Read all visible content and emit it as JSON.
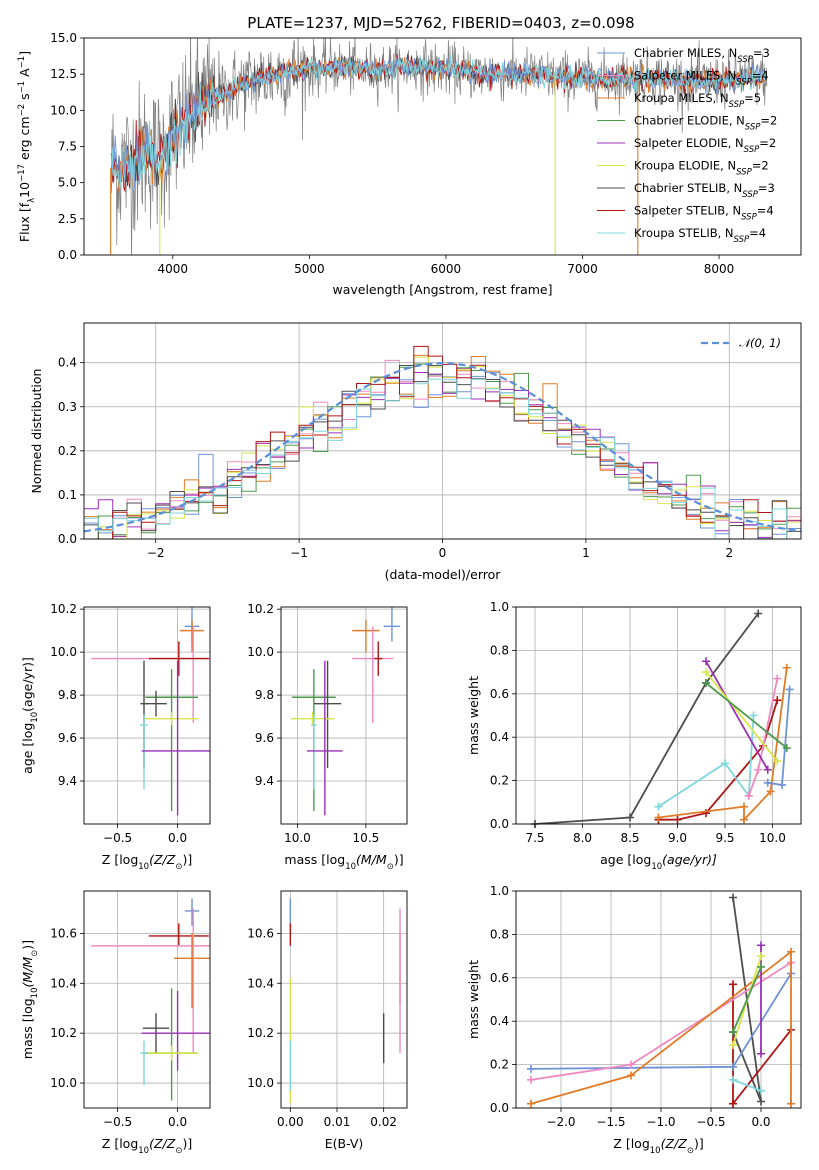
{
  "title": "PLATE=1237, MJD=52762, FIBERID=0403, z=0.098",
  "colors": {
    "chabrier_miles": "#6f93d8",
    "salpeter_miles": "#f08ac0",
    "kroupa_miles": "#e07b28",
    "chabrier_elodie": "#4e9a4e",
    "salpeter_elodie": "#9b30b8",
    "kroupa_elodie": "#d9e64a",
    "chabrier_stelib": "#4d4d4d",
    "salpeter_stelib": "#b01515",
    "kroupa_stelib": "#7fd6dc",
    "data_grey": "#808080",
    "normal_curve": "#5b8fd6",
    "grid": "#b0b0b0"
  },
  "chart_data": [
    {
      "id": "spectrum",
      "type": "line",
      "xlabel": "wavelength [Angstrom, rest frame]",
      "ylabel": "Flux [f",
      "ylabel_sub": "λ",
      "ylabel_mid": "10",
      "ylabel_sup": "−17",
      "ylabel_end": " erg cm",
      "ylabel_end_sup": "−2",
      "ylabel_s": " s",
      "ylabel_s_sup": "−1",
      "ylabel_a": " A",
      "ylabel_a_sup": "−1",
      "ylabel_close": "]",
      "xlim": [
        3350,
        8600
      ],
      "ylim": [
        0,
        15
      ],
      "xticks": [
        4000,
        5000,
        6000,
        7000,
        8000
      ],
      "yticks": [
        "0.0",
        "2.5",
        "5.0",
        "7.5",
        "10.0",
        "12.5",
        "15.0"
      ],
      "ytick_values": [
        0,
        2.5,
        5,
        7.5,
        10,
        12.5,
        15
      ],
      "legend": [
        {
          "key": "chabrier_miles",
          "pre": "Chabrier MILES, N",
          "sub": "SSP",
          "post": "=3"
        },
        {
          "key": "salpeter_miles",
          "pre": "Salpeter MILES, N",
          "sub": "SSP",
          "post": "=4"
        },
        {
          "key": "kroupa_miles",
          "pre": "Kroupa MILES, N",
          "sub": "SSP",
          "post": "=5"
        },
        {
          "key": "chabrier_elodie",
          "pre": "Chabrier ELODIE, N",
          "sub": "SSP",
          "post": "=2"
        },
        {
          "key": "salpeter_elodie",
          "pre": "Salpeter ELODIE, N",
          "sub": "SSP",
          "post": "=2"
        },
        {
          "key": "kroupa_elodie",
          "pre": "Kroupa ELODIE, N",
          "sub": "SSP",
          "post": "=2"
        },
        {
          "key": "chabrier_stelib",
          "pre": "Chabrier STELIB, N",
          "sub": "SSP",
          "post": "=3"
        },
        {
          "key": "salpeter_stelib",
          "pre": "Salpeter STELIB, N",
          "sub": "SSP",
          "post": "=4"
        },
        {
          "key": "kroupa_stelib",
          "pre": "Kroupa STELIB, N",
          "sub": "SSP",
          "post": "=4"
        }
      ],
      "model_envelope": {
        "x": [
          3550,
          3600,
          3700,
          3800,
          3900,
          4000,
          4100,
          4200,
          4300,
          4400,
          4600,
          4800,
          5000,
          5200,
          5400,
          5600,
          5800,
          6000,
          6200,
          6400,
          6600,
          6800,
          7000,
          7200,
          7400,
          7600,
          7800,
          8000,
          8200,
          8350
        ],
        "y": [
          6.2,
          6.0,
          6.3,
          7.2,
          6.5,
          8.2,
          9.3,
          10.4,
          10.9,
          11.3,
          12.1,
          12.6,
          12.9,
          13.0,
          12.8,
          12.9,
          13.0,
          12.8,
          12.6,
          12.5,
          12.5,
          12.3,
          12.2,
          12.2,
          12.3,
          12.2,
          12.0,
          12.0,
          12.3,
          12.2
        ]
      },
      "spikes": [
        {
          "key": "kroupa_miles",
          "x": 3545,
          "ymin": 0,
          "ymax": 6.0
        },
        {
          "key": "kroupa_elodie",
          "x": 3905,
          "ymin": 0,
          "ymax": 6.5
        },
        {
          "key": "kroupa_elodie",
          "x": 6800,
          "ymin": 0,
          "ymax": 12.4
        },
        {
          "key": "kroupa_miles",
          "x": 7405,
          "ymin": 0,
          "ymax": 12.3
        }
      ]
    },
    {
      "id": "residuals",
      "type": "line",
      "xlabel": "(data-model)/error",
      "ylabel": "Normed distribution",
      "xlim": [
        -2.5,
        2.5
      ],
      "ylim": [
        0,
        0.49
      ],
      "xticks": [
        -2,
        -1,
        0,
        1,
        2
      ],
      "xtick_labels": [
        "−2",
        "−1",
        "0",
        "1",
        "2"
      ],
      "yticks": [
        0.0,
        0.1,
        0.2,
        0.3,
        0.4
      ],
      "ytick_labels": [
        "0.0",
        "0.1",
        "0.2",
        "0.3",
        "0.4"
      ],
      "legend_label": "𝒩(0, 1)",
      "bin_width": 0.1,
      "normal": {
        "mu": 0,
        "sigma": 1
      }
    },
    {
      "id": "age_vs_Z",
      "type": "scatter",
      "xlabel": "Z [log",
      "xlabel_sub": "10",
      "xlabel_rest": "(Z/Z",
      "xlabel_sub2": "⊙",
      "xlabel_end": ")]",
      "ylabel": "age  [log",
      "ylabel_sub": "10",
      "ylabel_rest": "(age/yr)]",
      "xlim": [
        -0.78,
        0.27
      ],
      "ylim": [
        9.2,
        10.21
      ],
      "xticks": [
        -0.5,
        0.0
      ],
      "xtick_labels": [
        "−0.5",
        "0.0"
      ],
      "yticks": [
        9.4,
        9.6,
        9.8,
        10.0,
        10.2
      ],
      "ytick_labels": [
        "9.4",
        "9.6",
        "9.8",
        "10.0",
        "10.2"
      ],
      "points": [
        {
          "key": "chabrier_miles",
          "x": 0.12,
          "y": 10.12,
          "xerr": 0.06,
          "yerr": [
            0.07,
            0.09
          ]
        },
        {
          "key": "kroupa_miles",
          "x": 0.12,
          "y": 10.1,
          "xerr": 0.1,
          "yerr": [
            0.1,
            0.05
          ]
        },
        {
          "key": "salpeter_miles",
          "x": 0.13,
          "y": 9.97,
          "xerr": 0.85,
          "yerr": [
            0.3,
            0.15
          ]
        },
        {
          "key": "salpeter_stelib",
          "x": 0.01,
          "y": 9.97,
          "xerr": 0.25,
          "yerr": [
            0.08,
            0.08
          ]
        },
        {
          "key": "chabrier_elodie",
          "x": -0.05,
          "y": 9.79,
          "xerr": 0.22,
          "yerr": [
            0.53,
            0.13
          ]
        },
        {
          "key": "chabrier_stelib",
          "x": -0.28,
          "y": 9.76,
          "xerr": 0.03,
          "yerr": [
            0.3,
            0.2
          ]
        },
        {
          "key": "chabrier_stelib",
          "x": -0.18,
          "y": 9.76,
          "xerr": 0.09,
          "yerr": [
            0.06,
            0.06
          ]
        },
        {
          "key": "kroupa_elodie",
          "x": -0.05,
          "y": 9.69,
          "xerr": 0.22,
          "yerr": [
            0.03,
            0.03
          ]
        },
        {
          "key": "kroupa_stelib",
          "x": -0.28,
          "y": 9.66,
          "xerr": 0.03,
          "yerr": [
            0.3,
            0.05
          ]
        },
        {
          "key": "salpeter_elodie",
          "x": 0.0,
          "y": 9.54,
          "xerr": 0.3,
          "yerr": [
            0.3,
            0.42
          ]
        }
      ]
    },
    {
      "id": "age_vs_mass",
      "type": "scatter",
      "xlabel": "mass [log",
      "xlabel_sub": "10",
      "xlabel_rest": "(M/M",
      "xlabel_sub2": "⊙",
      "xlabel_end": ")]",
      "xlim": [
        9.88,
        10.8
      ],
      "ylim": [
        9.2,
        10.21
      ],
      "xticks": [
        10.0,
        10.5
      ],
      "xtick_labels": [
        "10.0",
        "10.5"
      ],
      "yticks": [
        9.4,
        9.6,
        9.8,
        10.0,
        10.2
      ],
      "ytick_labels": [
        "9.4",
        "9.6",
        "9.8",
        "10.0",
        "10.2"
      ],
      "points": [
        {
          "key": "chabrier_miles",
          "x": 10.69,
          "y": 10.12,
          "xerr": 0.06,
          "yerr": [
            0.07,
            0.09
          ]
        },
        {
          "key": "kroupa_miles",
          "x": 10.5,
          "y": 10.1,
          "xerr": 0.1,
          "yerr": [
            0.1,
            0.05
          ]
        },
        {
          "key": "salpeter_miles",
          "x": 10.55,
          "y": 9.97,
          "xerr": 0.15,
          "yerr": [
            0.3,
            0.15
          ]
        },
        {
          "key": "salpeter_stelib",
          "x": 10.59,
          "y": 9.97,
          "xerr": 0.03,
          "yerr": [
            0.08,
            0.08
          ]
        },
        {
          "key": "chabrier_elodie",
          "x": 10.12,
          "y": 9.79,
          "xerr": 0.16,
          "yerr": [
            0.53,
            0.13
          ]
        },
        {
          "key": "chabrier_stelib",
          "x": 10.22,
          "y": 9.76,
          "xerr": 0.1,
          "yerr": [
            0.3,
            0.2
          ]
        },
        {
          "key": "kroupa_elodie",
          "x": 10.11,
          "y": 9.69,
          "xerr": 0.16,
          "yerr": [
            0.03,
            0.03
          ]
        },
        {
          "key": "kroupa_stelib",
          "x": 10.12,
          "y": 9.66,
          "xerr": 0.02,
          "yerr": [
            0.3,
            0.05
          ]
        },
        {
          "key": "salpeter_elodie",
          "x": 10.2,
          "y": 9.54,
          "xerr": 0.13,
          "yerr": [
            0.3,
            0.42
          ]
        }
      ]
    },
    {
      "id": "weight_vs_age",
      "type": "line",
      "xlabel": "age  [log",
      "xlabel_sub": "10",
      "xlabel_rest": "(age/yr)]",
      "ylabel": "mass weight",
      "xlim": [
        7.3,
        10.3
      ],
      "ylim": [
        0,
        1.0
      ],
      "xticks": [
        7.5,
        8.0,
        8.5,
        9.0,
        9.5,
        10.0
      ],
      "xtick_labels": [
        "7.5",
        "8.0",
        "8.5",
        "9.0",
        "9.5",
        "10.0"
      ],
      "yticks": [
        0.0,
        0.2,
        0.4,
        0.6,
        0.8,
        1.0
      ],
      "ytick_labels": [
        "0.0",
        "0.2",
        "0.4",
        "0.6",
        "0.8",
        "1.0"
      ],
      "series": [
        {
          "key": "chabrier_stelib",
          "x": [
            7.5,
            8.5,
            9.3,
            9.85
          ],
          "y": [
            0.0,
            0.03,
            0.65,
            0.97
          ]
        },
        {
          "key": "salpeter_stelib",
          "x": [
            8.8,
            9.0,
            9.3,
            9.9,
            10.05
          ],
          "y": [
            0.02,
            0.02,
            0.05,
            0.36,
            0.57
          ]
        },
        {
          "key": "kroupa_stelib",
          "x": [
            8.8,
            9.5,
            9.75,
            9.8
          ],
          "y": [
            0.08,
            0.28,
            0.13,
            0.5
          ]
        },
        {
          "key": "kroupa_miles",
          "x": [
            8.8,
            9.7,
            9.7,
            9.98,
            10.15
          ],
          "y": [
            0.03,
            0.08,
            0.02,
            0.15,
            0.72
          ]
        },
        {
          "key": "salpeter_miles",
          "x": [
            9.75,
            9.85,
            10.05
          ],
          "y": [
            0.13,
            0.25,
            0.67
          ]
        },
        {
          "key": "chabrier_miles",
          "x": [
            9.95,
            10.1,
            10.18
          ],
          "y": [
            0.19,
            0.18,
            0.62
          ]
        },
        {
          "key": "salpeter_elodie",
          "x": [
            9.3,
            9.95
          ],
          "y": [
            0.75,
            0.25
          ]
        },
        {
          "key": "kroupa_elodie",
          "x": [
            9.3,
            10.05
          ],
          "y": [
            0.7,
            0.29
          ]
        },
        {
          "key": "chabrier_elodie",
          "x": [
            9.3,
            10.15
          ],
          "y": [
            0.65,
            0.35
          ]
        }
      ]
    },
    {
      "id": "mass_vs_Z",
      "type": "scatter",
      "xlabel": "Z [log",
      "xlabel_sub": "10",
      "xlabel_rest": "(Z/Z",
      "xlabel_sub2": "⊙",
      "xlabel_end": ")]",
      "ylabel": "mass [log",
      "ylabel_sub": "10",
      "ylabel_rest": "(M/M",
      "ylabel_sub2": "⊙",
      "ylabel_end": ")]",
      "xlim": [
        -0.78,
        0.27
      ],
      "ylim": [
        9.9,
        10.77
      ],
      "xticks": [
        -0.5,
        0.0
      ],
      "xtick_labels": [
        "−0.5",
        "0.0"
      ],
      "yticks": [
        10.0,
        10.2,
        10.4,
        10.6
      ],
      "ytick_labels": [
        "10.0",
        "10.2",
        "10.4",
        "10.6"
      ],
      "points": [
        {
          "key": "chabrier_miles",
          "x": 0.12,
          "y": 10.69,
          "xerr": 0.06,
          "yerr": [
            0.06,
            0.05
          ]
        },
        {
          "key": "salpeter_stelib",
          "x": 0.01,
          "y": 10.59,
          "xerr": 0.25,
          "yerr": [
            0.04,
            0.05
          ]
        },
        {
          "key": "salpeter_miles",
          "x": 0.13,
          "y": 10.55,
          "xerr": 0.85,
          "yerr": [
            0.43,
            0.15
          ]
        },
        {
          "key": "kroupa_miles",
          "x": 0.12,
          "y": 10.5,
          "xerr": 0.15,
          "yerr": [
            0.2,
            0.1
          ]
        },
        {
          "key": "chabrier_stelib",
          "x": -0.18,
          "y": 10.22,
          "xerr": 0.11,
          "yerr": [
            0.1,
            0.06
          ]
        },
        {
          "key": "salpeter_elodie",
          "x": 0.0,
          "y": 10.2,
          "xerr": 0.3,
          "yerr": [
            0.15,
            0.17
          ]
        },
        {
          "key": "chabrier_elodie",
          "x": -0.05,
          "y": 10.12,
          "xerr": 0.22,
          "yerr": [
            0.19,
            0.26
          ]
        },
        {
          "key": "kroupa_elodie",
          "x": -0.05,
          "y": 10.12,
          "xerr": 0.22,
          "yerr": [
            0.03,
            0.03
          ]
        },
        {
          "key": "kroupa_stelib",
          "x": -0.28,
          "y": 10.12,
          "xerr": 0.03,
          "yerr": [
            0.13,
            0.05
          ]
        }
      ]
    },
    {
      "id": "mass_vs_ebv",
      "type": "scatter",
      "xlabel": "E(B-V)",
      "xlim": [
        -0.002,
        0.025
      ],
      "ylim": [
        9.9,
        10.77
      ],
      "xticks": [
        0.0,
        0.01,
        0.02
      ],
      "xtick_labels": [
        "0.00",
        "0.01",
        "0.02"
      ],
      "yticks": [
        10.0,
        10.2,
        10.4,
        10.6
      ],
      "ytick_labels": [
        "10.0",
        "10.2",
        "10.4",
        "10.6"
      ],
      "points": [
        {
          "key": "chabrier_miles",
          "x": 0.0,
          "y": 10.69,
          "xerr": 0,
          "yerr": [
            0.06,
            0.05
          ]
        },
        {
          "key": "salpeter_stelib",
          "x": 0.0,
          "y": 10.59,
          "xerr": 0,
          "yerr": [
            0.04,
            0.05
          ]
        },
        {
          "key": "kroupa_elodie",
          "x": 0.0,
          "y": 10.12,
          "xerr": 0,
          "yerr": [
            0.2,
            0.3
          ]
        },
        {
          "key": "kroupa_stelib",
          "x": 0.0,
          "y": 10.12,
          "xerr": 0,
          "yerr": [
            0.15,
            0.05
          ]
        },
        {
          "key": "chabrier_stelib",
          "x": 0.02,
          "y": 10.2,
          "xerr": 0,
          "yerr": [
            0.12,
            0.08
          ]
        },
        {
          "key": "kroupa_miles",
          "x": 0.0235,
          "y": 10.5,
          "xerr": 0,
          "yerr": [
            0.18,
            0.1
          ]
        },
        {
          "key": "salpeter_miles",
          "x": 0.0235,
          "y": 10.45,
          "xerr": 0,
          "yerr": [
            0.33,
            0.25
          ]
        }
      ]
    },
    {
      "id": "weight_vs_Z",
      "type": "line",
      "xlabel": "Z [log",
      "xlabel_sub": "10",
      "xlabel_rest": "(Z/Z",
      "xlabel_sub2": "⊙",
      "xlabel_end": ")]",
      "ylabel": "mass weight",
      "xlim": [
        -2.45,
        0.4
      ],
      "ylim": [
        0,
        1.0
      ],
      "xticks": [
        -2.0,
        -1.5,
        -1.0,
        -0.5,
        0.0
      ],
      "xtick_labels": [
        "−2.0",
        "−1.5",
        "−1.0",
        "−0.5",
        "0.0"
      ],
      "yticks": [
        0.0,
        0.2,
        0.4,
        0.6,
        0.8,
        1.0
      ],
      "ytick_labels": [
        "0.0",
        "0.2",
        "0.4",
        "0.6",
        "0.8",
        "1.0"
      ],
      "series": [
        {
          "key": "chabrier_stelib",
          "x": [
            -0.28,
            0.0,
            -0.28
          ],
          "y": [
            0.97,
            0.03,
            0.35
          ]
        },
        {
          "key": "salpeter_stelib",
          "x": [
            -0.28,
            -0.28,
            0.3
          ],
          "y": [
            0.57,
            0.02,
            0.36
          ]
        },
        {
          "key": "chabrier_miles",
          "x": [
            -2.3,
            -0.28,
            0.3
          ],
          "y": [
            0.18,
            0.19,
            0.62
          ]
        },
        {
          "key": "salpeter_miles",
          "x": [
            -2.3,
            -1.3,
            0.3
          ],
          "y": [
            0.13,
            0.2,
            0.67
          ]
        },
        {
          "key": "kroupa_miles",
          "x": [
            -2.3,
            -1.3,
            0.3,
            0.3
          ],
          "y": [
            0.02,
            0.15,
            0.72,
            0.02
          ]
        },
        {
          "key": "salpeter_elodie",
          "x": [
            0.0,
            0.0
          ],
          "y": [
            0.75,
            0.25
          ]
        },
        {
          "key": "kroupa_elodie",
          "x": [
            -0.28,
            0.0
          ],
          "y": [
            0.29,
            0.7
          ]
        },
        {
          "key": "chabrier_elodie",
          "x": [
            -0.28,
            0.0
          ],
          "y": [
            0.35,
            0.65
          ]
        },
        {
          "key": "kroupa_stelib",
          "x": [
            -0.28,
            0.0
          ],
          "y": [
            0.13,
            0.08
          ]
        }
      ]
    }
  ]
}
